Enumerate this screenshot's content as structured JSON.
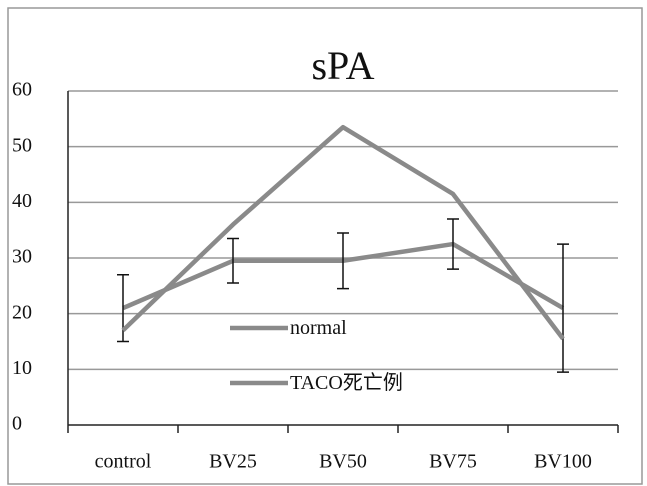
{
  "chart_data": {
    "type": "line",
    "title": "sPA",
    "categories": [
      "control",
      "BV25",
      "BV50",
      "BV75",
      "BV100"
    ],
    "series": [
      {
        "name": "normal",
        "color": "#8a8a8a",
        "values": [
          21,
          29.5,
          29.5,
          32.5,
          21
        ],
        "errors": [
          6,
          4,
          5,
          4.5,
          11.5
        ]
      },
      {
        "name": "TACO死亡例",
        "color": "#8a8a8a",
        "values": [
          17,
          36,
          53.5,
          41.5,
          15.5
        ]
      }
    ],
    "ylim": [
      0,
      60
    ],
    "yticks": [
      0,
      10,
      20,
      30,
      40,
      50,
      60
    ],
    "grid": true
  }
}
